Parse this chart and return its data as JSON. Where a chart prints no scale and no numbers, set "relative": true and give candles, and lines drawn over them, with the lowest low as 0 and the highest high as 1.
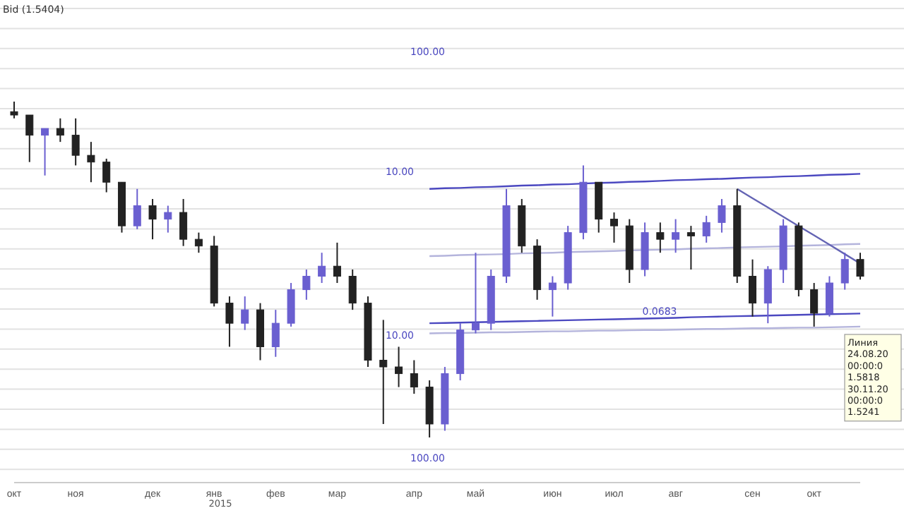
{
  "chart_data": {
    "type": "candlestick",
    "relative": true,
    "grid": "y",
    "categories": [
      "окт",
      null,
      null,
      null,
      "ноя",
      null,
      null,
      null,
      null,
      "дек",
      null,
      null,
      null,
      "янв",
      null,
      null,
      null,
      "фев",
      null,
      null,
      null,
      "мар",
      null,
      null,
      null,
      null,
      "апр",
      null,
      null,
      null,
      "май",
      null,
      null,
      null,
      null,
      "июн",
      null,
      null,
      null,
      "июл",
      null,
      null,
      null,
      "авг",
      null,
      null,
      null,
      null,
      "сен",
      null,
      null,
      null,
      "окт",
      null,
      null,
      null
    ],
    "ohlc": [
      [
        0.97,
        1.0,
        0.95,
        0.96
      ],
      [
        0.96,
        0.96,
        0.82,
        0.9
      ],
      [
        0.9,
        0.92,
        0.78,
        0.92
      ],
      [
        0.92,
        0.95,
        0.88,
        0.9
      ],
      [
        0.9,
        0.95,
        0.81,
        0.84
      ],
      [
        0.84,
        0.88,
        0.76,
        0.82
      ],
      [
        0.82,
        0.83,
        0.73,
        0.76
      ],
      [
        0.76,
        0.76,
        0.61,
        0.63
      ],
      [
        0.63,
        0.74,
        0.62,
        0.69
      ],
      [
        0.69,
        0.71,
        0.59,
        0.65
      ],
      [
        0.65,
        0.69,
        0.61,
        0.67
      ],
      [
        0.67,
        0.71,
        0.57,
        0.59
      ],
      [
        0.59,
        0.61,
        0.55,
        0.57
      ],
      [
        0.57,
        0.6,
        0.39,
        0.4
      ],
      [
        0.4,
        0.42,
        0.27,
        0.34
      ],
      [
        0.34,
        0.42,
        0.32,
        0.38
      ],
      [
        0.38,
        0.4,
        0.23,
        0.27
      ],
      [
        0.27,
        0.38,
        0.24,
        0.34
      ],
      [
        0.34,
        0.46,
        0.33,
        0.44
      ],
      [
        0.44,
        0.5,
        0.41,
        0.48
      ],
      [
        0.48,
        0.55,
        0.46,
        0.51
      ],
      [
        0.51,
        0.58,
        0.46,
        0.48
      ],
      [
        0.48,
        0.5,
        0.38,
        0.4
      ],
      [
        0.4,
        0.42,
        0.21,
        0.23
      ],
      [
        0.23,
        0.35,
        0.04,
        0.21
      ],
      [
        0.21,
        0.27,
        0.15,
        0.19
      ],
      [
        0.19,
        0.23,
        0.13,
        0.15
      ],
      [
        0.15,
        0.17,
        0.0,
        0.04
      ],
      [
        0.04,
        0.21,
        0.02,
        0.19
      ],
      [
        0.19,
        0.34,
        0.17,
        0.32
      ],
      [
        0.32,
        0.55,
        0.31,
        0.34
      ],
      [
        0.34,
        0.5,
        0.32,
        0.48
      ],
      [
        0.48,
        0.74,
        0.46,
        0.69
      ],
      [
        0.69,
        0.71,
        0.55,
        0.57
      ],
      [
        0.57,
        0.59,
        0.41,
        0.44
      ],
      [
        0.44,
        0.48,
        0.36,
        0.46
      ],
      [
        0.46,
        0.63,
        0.44,
        0.61
      ],
      [
        0.61,
        0.81,
        0.59,
        0.76
      ],
      [
        0.76,
        0.76,
        0.61,
        0.65
      ],
      [
        0.65,
        0.67,
        0.58,
        0.63
      ],
      [
        0.63,
        0.65,
        0.46,
        0.5
      ],
      [
        0.5,
        0.64,
        0.48,
        0.61
      ],
      [
        0.61,
        0.64,
        0.55,
        0.59
      ],
      [
        0.59,
        0.65,
        0.55,
        0.61
      ],
      [
        0.61,
        0.63,
        0.5,
        0.6
      ],
      [
        0.6,
        0.66,
        0.58,
        0.64
      ],
      [
        0.64,
        0.71,
        0.61,
        0.69
      ],
      [
        0.69,
        0.74,
        0.46,
        0.48
      ],
      [
        0.48,
        0.53,
        0.36,
        0.4
      ],
      [
        0.4,
        0.51,
        0.34,
        0.5
      ],
      [
        0.5,
        0.65,
        0.46,
        0.63
      ],
      [
        0.63,
        0.64,
        0.42,
        0.44
      ],
      [
        0.44,
        0.46,
        0.33,
        0.37
      ],
      [
        0.37,
        0.48,
        0.36,
        0.46
      ],
      [
        0.46,
        0.55,
        0.44,
        0.53
      ],
      [
        0.53,
        0.55,
        0.47,
        0.48
      ]
    ],
    "colors": [
      "#222222",
      "#222222",
      "#6a5fd0",
      "#222222",
      "#222222",
      "#222222",
      "#222222",
      "#222222",
      "#6a5fd0",
      "#222222",
      "#6a5fd0",
      "#222222",
      "#222222",
      "#222222",
      "#222222",
      "#6a5fd0",
      "#222222",
      "#6a5fd0",
      "#6a5fd0",
      "#6a5fd0",
      "#6a5fd0",
      "#222222",
      "#222222",
      "#222222",
      "#222222",
      "#222222",
      "#222222",
      "#222222",
      "#6a5fd0",
      "#6a5fd0",
      "#6a5fd0",
      "#6a5fd0",
      "#6a5fd0",
      "#222222",
      "#222222",
      "#6a5fd0",
      "#6a5fd0",
      "#6a5fd0",
      "#222222",
      "#222222",
      "#222222",
      "#6a5fd0",
      "#222222",
      "#6a5fd0",
      "#222222",
      "#6a5fd0",
      "#6a5fd0",
      "#222222",
      "#222222",
      "#6a5fd0",
      "#6a5fd0",
      "#222222",
      "#222222",
      "#6a5fd0",
      "#6a5fd0",
      "#222222"
    ],
    "series": [
      {
        "type": "line",
        "color": "#4b48c0",
        "values": [
          null,
          null,
          null,
          null,
          null,
          null,
          null,
          null,
          null,
          null,
          null,
          null,
          null,
          null,
          null,
          null,
          null,
          null,
          null,
          null,
          null,
          null,
          null,
          null,
          null,
          null,
          null,
          0.74,
          0.742,
          0.743,
          0.745,
          0.746,
          0.748,
          0.75,
          0.751,
          0.753,
          0.754,
          0.756,
          0.758,
          0.759,
          0.761,
          0.762,
          0.764,
          0.766,
          0.767,
          0.769,
          0.77,
          0.772,
          0.774,
          0.775,
          0.777,
          0.778,
          0.78,
          0.782,
          0.783,
          0.785
        ]
      },
      {
        "type": "line",
        "color": "#b4b4dc",
        "values": [
          null,
          null,
          null,
          null,
          null,
          null,
          null,
          null,
          null,
          null,
          null,
          null,
          null,
          null,
          null,
          null,
          null,
          null,
          null,
          null,
          null,
          null,
          null,
          null,
          null,
          null,
          null,
          0.54,
          0.541,
          0.543,
          0.544,
          0.545,
          0.546,
          0.548,
          0.549,
          0.55,
          0.552,
          0.553,
          0.554,
          0.555,
          0.557,
          0.558,
          0.559,
          0.56,
          0.562,
          0.563,
          0.564,
          0.566,
          0.567,
          0.568,
          0.569,
          0.571,
          0.572,
          0.573,
          0.575,
          0.576
        ]
      },
      {
        "type": "line",
        "color": "#4b48c0",
        "values": [
          null,
          null,
          null,
          null,
          null,
          null,
          null,
          null,
          null,
          null,
          null,
          null,
          null,
          null,
          null,
          null,
          null,
          null,
          null,
          null,
          null,
          null,
          null,
          null,
          null,
          null,
          null,
          0.34,
          0.341,
          0.342,
          0.343,
          0.344,
          0.345,
          0.346,
          0.347,
          0.348,
          0.349,
          0.35,
          0.351,
          0.352,
          0.353,
          0.354,
          0.355,
          0.356,
          0.358,
          0.359,
          0.36,
          0.361,
          0.362,
          0.363,
          0.364,
          0.365,
          0.366,
          0.367,
          0.368,
          0.369
        ]
      },
      {
        "type": "line",
        "color": "#b4b4dc",
        "values": [
          null,
          null,
          null,
          null,
          null,
          null,
          null,
          null,
          null,
          null,
          null,
          null,
          null,
          null,
          null,
          null,
          null,
          null,
          null,
          null,
          null,
          null,
          null,
          null,
          null,
          null,
          null,
          0.31,
          0.311,
          0.311,
          0.312,
          0.313,
          0.313,
          0.314,
          0.315,
          0.316,
          0.316,
          0.317,
          0.318,
          0.318,
          0.319,
          0.32,
          0.32,
          0.321,
          0.322,
          0.323,
          0.323,
          0.324,
          0.325,
          0.325,
          0.326,
          0.327,
          0.327,
          0.328,
          0.329,
          0.33
        ]
      },
      {
        "type": "line",
        "color": "#6464b4",
        "values": [
          null,
          null,
          null,
          null,
          null,
          null,
          null,
          null,
          null,
          null,
          null,
          null,
          null,
          null,
          null,
          null,
          null,
          null,
          null,
          null,
          null,
          null,
          null,
          null,
          null,
          null,
          null,
          null,
          null,
          null,
          null,
          null,
          null,
          null,
          null,
          null,
          null,
          null,
          null,
          null,
          null,
          null,
          null,
          null,
          null,
          null,
          null,
          0.74,
          0.712,
          0.685,
          0.657,
          0.629,
          0.602,
          0.574,
          0.546,
          0.518
        ]
      }
    ],
    "annotations": [
      "Bid (1.5404)",
      "100.00",
      "100.00",
      "2015",
      "10.00",
      "10.00",
      "0.0683",
      "Линия\n24.08.20\n00:00:0\n1.5818\n30.11.20\n00:00:0\n1.5241"
    ]
  }
}
